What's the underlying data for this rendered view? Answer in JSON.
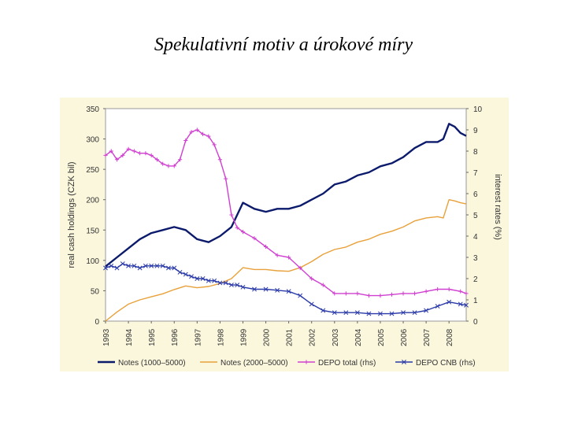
{
  "slide": {
    "title": "Spekulativní motiv a úrokové míry"
  },
  "chart_data": {
    "type": "line",
    "title": "",
    "ylabel": "real cash holdings (CZK bil)",
    "y2label": "interest rates (%)",
    "ylim": [
      0,
      350
    ],
    "y2lim": [
      0,
      10
    ],
    "xlim": [
      1993,
      2008.75
    ],
    "y_ticks": [
      0,
      50,
      100,
      150,
      200,
      250,
      300,
      350
    ],
    "y2_ticks": [
      0,
      1,
      2,
      3,
      4,
      5,
      6,
      7,
      8,
      9,
      10
    ],
    "x_tick_labels": [
      "1993",
      "1994",
      "1995",
      "1996",
      "1997",
      "1998",
      "1999",
      "2000",
      "2001",
      "2002",
      "2003",
      "2004",
      "2005",
      "2006",
      "2007",
      "2008"
    ],
    "grid": false,
    "legend_position": "bottom",
    "series": [
      {
        "name": "Notes (1000–5000)",
        "axis": "left",
        "color": "#0b1a6b",
        "marker": "none",
        "x": [
          1993.0,
          1993.5,
          1994.0,
          1994.5,
          1995.0,
          1995.5,
          1996.0,
          1996.5,
          1997.0,
          1997.5,
          1998.0,
          1998.5,
          1999.0,
          1999.5,
          2000.0,
          2000.5,
          2001.0,
          2001.5,
          2002.0,
          2002.5,
          2003.0,
          2003.5,
          2004.0,
          2004.5,
          2005.0,
          2005.5,
          2006.0,
          2006.5,
          2007.0,
          2007.5,
          2007.75,
          2008.0,
          2008.25,
          2008.5,
          2008.75
        ],
        "values": [
          90,
          105,
          120,
          135,
          145,
          150,
          155,
          150,
          135,
          130,
          140,
          155,
          195,
          185,
          180,
          185,
          185,
          190,
          200,
          210,
          225,
          230,
          240,
          245,
          255,
          260,
          270,
          285,
          295,
          295,
          300,
          325,
          320,
          310,
          305
        ]
      },
      {
        "name": "Notes (2000–5000)",
        "axis": "left",
        "color": "#e8a13a",
        "marker": "none",
        "x": [
          1993.0,
          1993.5,
          1994.0,
          1994.5,
          1995.0,
          1995.5,
          1996.0,
          1996.5,
          1997.0,
          1997.5,
          1998.0,
          1998.5,
          1999.0,
          1999.5,
          2000.0,
          2000.5,
          2001.0,
          2001.5,
          2002.0,
          2002.5,
          2003.0,
          2003.5,
          2004.0,
          2004.5,
          2005.0,
          2005.5,
          2006.0,
          2006.5,
          2007.0,
          2007.5,
          2007.75,
          2008.0,
          2008.25,
          2008.5,
          2008.75
        ],
        "values": [
          0,
          15,
          28,
          35,
          40,
          45,
          52,
          58,
          55,
          57,
          62,
          70,
          88,
          85,
          85,
          83,
          82,
          88,
          98,
          110,
          118,
          122,
          130,
          135,
          143,
          148,
          155,
          165,
          170,
          172,
          170,
          200,
          198,
          195,
          193
        ]
      },
      {
        "name": "DEPO total (rhs)",
        "axis": "right",
        "color": "#d040d0",
        "marker": "plus",
        "x": [
          1993.0,
          1993.25,
          1993.5,
          1993.75,
          1994.0,
          1994.25,
          1994.5,
          1994.75,
          1995.0,
          1995.25,
          1995.5,
          1995.75,
          1996.0,
          1996.25,
          1996.5,
          1996.75,
          1997.0,
          1997.25,
          1997.5,
          1997.75,
          1998.0,
          1998.25,
          1998.5,
          1998.75,
          1999.0,
          1999.5,
          2000.0,
          2000.5,
          2001.0,
          2001.5,
          2002.0,
          2002.5,
          2003.0,
          2003.5,
          2004.0,
          2004.5,
          2005.0,
          2005.5,
          2006.0,
          2006.5,
          2007.0,
          2007.5,
          2008.0,
          2008.5,
          2008.75
        ],
        "values": [
          7.8,
          8.0,
          7.6,
          7.8,
          8.1,
          8.0,
          7.9,
          7.9,
          7.8,
          7.6,
          7.4,
          7.3,
          7.3,
          7.6,
          8.5,
          8.9,
          9.0,
          8.8,
          8.7,
          8.3,
          7.6,
          6.7,
          5.0,
          4.4,
          4.2,
          3.9,
          3.5,
          3.1,
          3.0,
          2.5,
          2.0,
          1.7,
          1.3,
          1.3,
          1.3,
          1.2,
          1.2,
          1.25,
          1.3,
          1.3,
          1.4,
          1.5,
          1.5,
          1.4,
          1.3
        ]
      },
      {
        "name": "DEPO CNB (rhs)",
        "axis": "right",
        "color": "#2a3aa8",
        "marker": "x",
        "x": [
          1993.0,
          1993.25,
          1993.5,
          1993.75,
          1994.0,
          1994.25,
          1994.5,
          1994.75,
          1995.0,
          1995.25,
          1995.5,
          1995.75,
          1996.0,
          1996.25,
          1996.5,
          1996.75,
          1997.0,
          1997.25,
          1997.5,
          1997.75,
          1998.0,
          1998.25,
          1998.5,
          1998.75,
          1999.0,
          1999.5,
          2000.0,
          2000.5,
          2001.0,
          2001.5,
          2002.0,
          2002.5,
          2003.0,
          2003.5,
          2004.0,
          2004.5,
          2005.0,
          2005.5,
          2006.0,
          2006.5,
          2007.0,
          2007.5,
          2008.0,
          2008.5,
          2008.75
        ],
        "values": [
          2.5,
          2.6,
          2.5,
          2.7,
          2.6,
          2.6,
          2.5,
          2.6,
          2.6,
          2.6,
          2.6,
          2.5,
          2.5,
          2.3,
          2.2,
          2.1,
          2.0,
          2.0,
          1.9,
          1.9,
          1.8,
          1.8,
          1.7,
          1.7,
          1.6,
          1.5,
          1.5,
          1.45,
          1.4,
          1.2,
          0.8,
          0.5,
          0.4,
          0.4,
          0.4,
          0.35,
          0.35,
          0.35,
          0.4,
          0.4,
          0.5,
          0.7,
          0.9,
          0.8,
          0.75
        ]
      }
    ]
  }
}
